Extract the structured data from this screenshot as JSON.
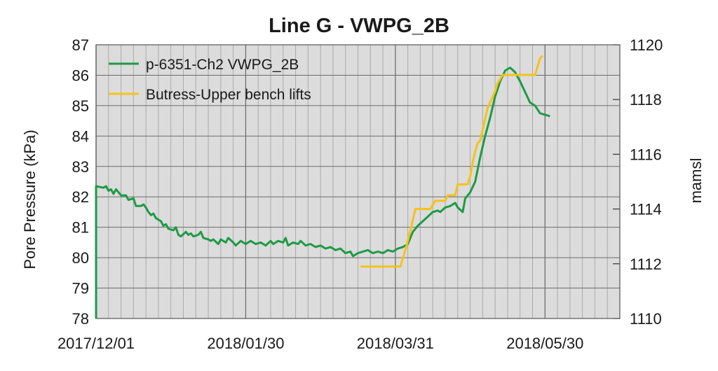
{
  "chart_data": {
    "type": "line",
    "title": "Line G - VWPG_2B",
    "ylabel": "Pore Pressure (kPa)",
    "y2label": "mamsl",
    "xlabel": "",
    "x_tick_labels": [
      "2017/12/01",
      "2018/01/30",
      "2018/03/31",
      "2018/05/30"
    ],
    "x_tick_values": [
      "2017-12-01",
      "2018-01-30",
      "2018-03-31",
      "2018-05-30"
    ],
    "xlim": [
      "2017-12-01",
      "2018-06-29"
    ],
    "ylim": [
      78,
      87
    ],
    "y2lim": [
      1110,
      1120
    ],
    "y_ticks": [
      78,
      79,
      80,
      81,
      82,
      83,
      84,
      85,
      86,
      87
    ],
    "y2_ticks": [
      1110,
      1112,
      1114,
      1116,
      1118,
      1120
    ],
    "grid": true,
    "minor_grid_days": 5,
    "legend_position": "top-left",
    "series": [
      {
        "name": "p-6351-Ch2 VWPG_2B",
        "axis": "left",
        "color": "#1e9a46",
        "points": [
          [
            "2017-12-01",
            78.0
          ],
          [
            "2017-12-01",
            82.35
          ],
          [
            "2017-12-04",
            82.3
          ],
          [
            "2017-12-05",
            82.35
          ],
          [
            "2017-12-06",
            82.2
          ],
          [
            "2017-12-07",
            82.25
          ],
          [
            "2017-12-08",
            82.1
          ],
          [
            "2017-12-09",
            82.25
          ],
          [
            "2017-12-10",
            82.15
          ],
          [
            "2017-12-11",
            82.05
          ],
          [
            "2017-12-13",
            82.05
          ],
          [
            "2017-12-14",
            81.9
          ],
          [
            "2017-12-16",
            81.95
          ],
          [
            "2017-12-17",
            81.7
          ],
          [
            "2017-12-19",
            81.7
          ],
          [
            "2017-12-20",
            81.75
          ],
          [
            "2017-12-21",
            81.65
          ],
          [
            "2017-12-22",
            81.5
          ],
          [
            "2017-12-23",
            81.4
          ],
          [
            "2017-12-24",
            81.45
          ],
          [
            "2017-12-25",
            81.3
          ],
          [
            "2017-12-27",
            81.2
          ],
          [
            "2017-12-28",
            81.05
          ],
          [
            "2017-12-29",
            81.1
          ],
          [
            "2017-12-30",
            80.95
          ],
          [
            "2018-01-01",
            80.9
          ],
          [
            "2018-01-02",
            81.0
          ],
          [
            "2018-01-03",
            80.75
          ],
          [
            "2018-01-04",
            80.7
          ],
          [
            "2018-01-06",
            80.85
          ],
          [
            "2018-01-07",
            80.75
          ],
          [
            "2018-01-08",
            80.8
          ],
          [
            "2018-01-09",
            80.7
          ],
          [
            "2018-01-11",
            80.75
          ],
          [
            "2018-01-12",
            80.85
          ],
          [
            "2018-01-13",
            80.65
          ],
          [
            "2018-01-15",
            80.6
          ],
          [
            "2018-01-16",
            80.55
          ],
          [
            "2018-01-17",
            80.6
          ],
          [
            "2018-01-19",
            80.45
          ],
          [
            "2018-01-20",
            80.6
          ],
          [
            "2018-01-22",
            80.5
          ],
          [
            "2018-01-23",
            80.65
          ],
          [
            "2018-01-25",
            80.5
          ],
          [
            "2018-01-26",
            80.4
          ],
          [
            "2018-01-28",
            80.55
          ],
          [
            "2018-01-30",
            80.45
          ],
          [
            "2018-02-01",
            80.55
          ],
          [
            "2018-02-03",
            80.45
          ],
          [
            "2018-02-05",
            80.5
          ],
          [
            "2018-02-07",
            80.4
          ],
          [
            "2018-02-09",
            80.55
          ],
          [
            "2018-02-10",
            80.45
          ],
          [
            "2018-02-12",
            80.55
          ],
          [
            "2018-02-14",
            80.5
          ],
          [
            "2018-02-15",
            80.65
          ],
          [
            "2018-02-16",
            80.4
          ],
          [
            "2018-02-18",
            80.5
          ],
          [
            "2018-02-20",
            80.45
          ],
          [
            "2018-02-21",
            80.55
          ],
          [
            "2018-02-23",
            80.4
          ],
          [
            "2018-02-25",
            80.45
          ],
          [
            "2018-02-27",
            80.35
          ],
          [
            "2018-03-01",
            80.4
          ],
          [
            "2018-03-03",
            80.3
          ],
          [
            "2018-03-05",
            80.35
          ],
          [
            "2018-03-07",
            80.25
          ],
          [
            "2018-03-09",
            80.3
          ],
          [
            "2018-03-11",
            80.15
          ],
          [
            "2018-03-13",
            80.2
          ],
          [
            "2018-03-14",
            80.05
          ],
          [
            "2018-03-16",
            80.15
          ],
          [
            "2018-03-18",
            80.2
          ],
          [
            "2018-03-20",
            80.25
          ],
          [
            "2018-03-22",
            80.15
          ],
          [
            "2018-03-24",
            80.2
          ],
          [
            "2018-03-26",
            80.15
          ],
          [
            "2018-03-28",
            80.25
          ],
          [
            "2018-03-30",
            80.2
          ],
          [
            "2018-04-01",
            80.3
          ],
          [
            "2018-04-03",
            80.35
          ],
          [
            "2018-04-05",
            80.45
          ],
          [
            "2018-04-07",
            80.85
          ],
          [
            "2018-04-09",
            81.05
          ],
          [
            "2018-04-11",
            81.2
          ],
          [
            "2018-04-13",
            81.35
          ],
          [
            "2018-04-15",
            81.5
          ],
          [
            "2018-04-17",
            81.55
          ],
          [
            "2018-04-18",
            81.5
          ],
          [
            "2018-04-20",
            81.65
          ],
          [
            "2018-04-22",
            81.7
          ],
          [
            "2018-04-24",
            81.8
          ],
          [
            "2018-04-25",
            81.65
          ],
          [
            "2018-04-27",
            81.5
          ],
          [
            "2018-04-28",
            81.95
          ],
          [
            "2018-04-30",
            82.15
          ],
          [
            "2018-05-02",
            82.5
          ],
          [
            "2018-05-04",
            83.3
          ],
          [
            "2018-05-06",
            84.0
          ],
          [
            "2018-05-08",
            84.6
          ],
          [
            "2018-05-10",
            85.3
          ],
          [
            "2018-05-12",
            85.8
          ],
          [
            "2018-05-14",
            86.15
          ],
          [
            "2018-05-16",
            86.25
          ],
          [
            "2018-05-18",
            86.1
          ],
          [
            "2018-05-20",
            85.8
          ],
          [
            "2018-05-22",
            85.45
          ],
          [
            "2018-05-24",
            85.1
          ],
          [
            "2018-05-26",
            85.0
          ],
          [
            "2018-05-28",
            84.75
          ],
          [
            "2018-05-30",
            84.7
          ],
          [
            "2018-06-01",
            84.65
          ]
        ]
      },
      {
        "name": "Butress-Upper bench lifts",
        "axis": "right",
        "color": "#f6c21a",
        "points": [
          [
            "2018-03-17",
            1111.9
          ],
          [
            "2018-03-31",
            1111.9
          ],
          [
            "2018-04-02",
            1111.9
          ],
          [
            "2018-04-04",
            1112.5
          ],
          [
            "2018-04-06",
            1113.2
          ],
          [
            "2018-04-08",
            1114.0
          ],
          [
            "2018-04-14",
            1114.0
          ],
          [
            "2018-04-16",
            1114.3
          ],
          [
            "2018-04-20",
            1114.3
          ],
          [
            "2018-04-21",
            1114.5
          ],
          [
            "2018-04-24",
            1114.5
          ],
          [
            "2018-04-25",
            1114.9
          ],
          [
            "2018-04-29",
            1114.9
          ],
          [
            "2018-04-30",
            1115.2
          ],
          [
            "2018-05-01",
            1115.7
          ],
          [
            "2018-05-02",
            1116.1
          ],
          [
            "2018-05-03",
            1116.4
          ],
          [
            "2018-05-04",
            1116.5
          ],
          [
            "2018-05-05",
            1116.9
          ],
          [
            "2018-05-06",
            1117.3
          ],
          [
            "2018-05-07",
            1117.7
          ],
          [
            "2018-05-08",
            1117.9
          ],
          [
            "2018-05-09",
            1118.1
          ],
          [
            "2018-05-10",
            1118.3
          ],
          [
            "2018-05-11",
            1118.6
          ],
          [
            "2018-05-13",
            1118.9
          ],
          [
            "2018-05-21",
            1118.9
          ],
          [
            "2018-05-26",
            1118.9
          ],
          [
            "2018-05-27",
            1119.2
          ],
          [
            "2018-05-28",
            1119.5
          ],
          [
            "2018-05-29",
            1119.6
          ]
        ]
      }
    ]
  },
  "colors": {
    "plot_background": "#dcdcdc",
    "minor_grid": "#aaaaaa",
    "major_grid": "#6b6b6b",
    "text": "#1a1a1a"
  }
}
